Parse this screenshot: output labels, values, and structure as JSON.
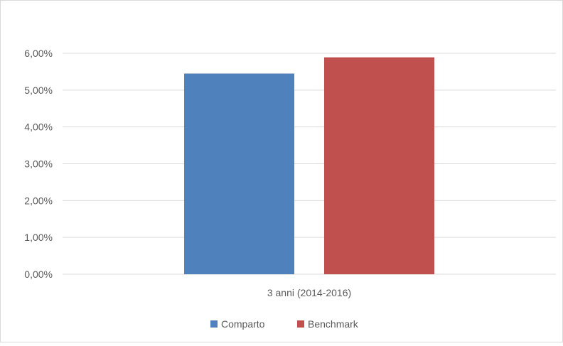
{
  "chart_data": {
    "type": "bar",
    "title": "",
    "xlabel": "",
    "ylabel": "",
    "categories": [
      "3 anni (2014-2016)"
    ],
    "series": [
      {
        "name": "Comparto",
        "values": [
          5.45
        ],
        "color": "#4f81bd"
      },
      {
        "name": "Benchmark",
        "values": [
          5.89
        ],
        "color": "#c0504d"
      }
    ],
    "ylim": [
      0,
      6
    ],
    "yticks": [
      0,
      1,
      2,
      3,
      4,
      5,
      6
    ],
    "ytick_labels": [
      "0,00%",
      "1,00%",
      "2,00%",
      "3,00%",
      "4,00%",
      "5,00%",
      "6,00%"
    ],
    "grid": true,
    "legend": "bottom-center",
    "gridline_color": "#d9d9d9",
    "axis_line_color": "#d9d9d9"
  }
}
